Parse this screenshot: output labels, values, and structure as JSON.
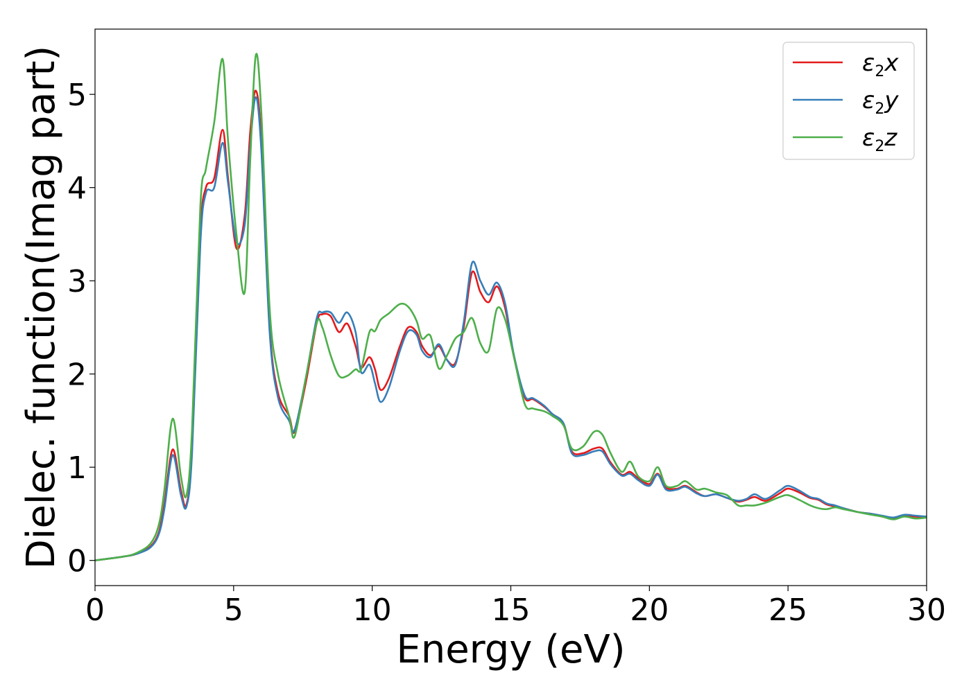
{
  "chart_data": {
    "type": "line",
    "title": "",
    "xlabel": "Energy (eV)",
    "ylabel": "Dielec. function(Imag part)",
    "xlim": [
      0,
      30
    ],
    "ylim": [
      -0.27,
      5.7
    ],
    "xticks": [
      "0",
      "5",
      "10",
      "15",
      "20",
      "25",
      "30"
    ],
    "yticks": [
      "0",
      "1",
      "2",
      "3",
      "4",
      "5"
    ],
    "grid": false,
    "legend_position": "top-right",
    "series": [
      {
        "name": "ε₂x",
        "label_base": "ε",
        "label_sub": "2",
        "label_var": "x",
        "color": "#e41a1c",
        "x": [
          0,
          1,
          1.5,
          2,
          2.3,
          2.5,
          2.8,
          3.1,
          3.3,
          3.5,
          3.8,
          4,
          4.3,
          4.6,
          4.8,
          5.1,
          5.4,
          5.6,
          5.8,
          6,
          6.3,
          6.6,
          7,
          7.2,
          7.6,
          8,
          8.2,
          8.5,
          8.8,
          9.1,
          9.4,
          9.6,
          9.9,
          10.1,
          10.3,
          10.6,
          11,
          11.3,
          11.6,
          11.8,
          12.1,
          12.4,
          12.7,
          13,
          13.3,
          13.6,
          13.9,
          14.2,
          14.5,
          14.8,
          15.1,
          15.5,
          15.8,
          16.2,
          16.5,
          16.9,
          17.2,
          17.6,
          18,
          18.3,
          18.6,
          19,
          19.3,
          19.6,
          20,
          20.3,
          20.6,
          21,
          21.3,
          21.7,
          22,
          22.4,
          22.8,
          23.2,
          23.5,
          23.8,
          24.2,
          24.7,
          25,
          25.4,
          25.8,
          26.1,
          26.4,
          26.7,
          27,
          27.5,
          28,
          28.4,
          28.8,
          29.2,
          29.6,
          30
        ],
        "y": [
          0,
          0.04,
          0.07,
          0.15,
          0.3,
          0.6,
          1.19,
          0.75,
          0.6,
          1.2,
          3.5,
          4.0,
          4.1,
          4.62,
          4.1,
          3.35,
          3.7,
          4.6,
          5.04,
          4.5,
          2.5,
          1.8,
          1.55,
          1.38,
          1.9,
          2.55,
          2.64,
          2.62,
          2.45,
          2.54,
          2.3,
          2.07,
          2.18,
          2.05,
          1.83,
          1.95,
          2.3,
          2.5,
          2.45,
          2.3,
          2.2,
          2.3,
          2.15,
          2.12,
          2.5,
          3.09,
          2.88,
          2.77,
          2.94,
          2.7,
          2.2,
          1.75,
          1.73,
          1.65,
          1.57,
          1.47,
          1.17,
          1.15,
          1.2,
          1.2,
          1.05,
          0.92,
          0.95,
          0.88,
          0.82,
          0.93,
          0.78,
          0.77,
          0.8,
          0.73,
          0.69,
          0.71,
          0.67,
          0.63,
          0.65,
          0.68,
          0.64,
          0.72,
          0.77,
          0.73,
          0.67,
          0.65,
          0.6,
          0.58,
          0.56,
          0.52,
          0.5,
          0.47,
          0.45,
          0.48,
          0.47,
          0.46
        ]
      },
      {
        "name": "ε₂y",
        "label_base": "ε",
        "label_sub": "2",
        "label_var": "y",
        "color": "#377eb8",
        "x": [
          0,
          1,
          1.5,
          2,
          2.3,
          2.5,
          2.8,
          3.1,
          3.3,
          3.5,
          3.8,
          4,
          4.3,
          4.6,
          4.8,
          5.1,
          5.4,
          5.6,
          5.8,
          6,
          6.3,
          6.6,
          7,
          7.2,
          7.6,
          8,
          8.2,
          8.5,
          8.8,
          9.1,
          9.4,
          9.6,
          9.9,
          10.1,
          10.3,
          10.6,
          11,
          11.3,
          11.6,
          11.8,
          12.1,
          12.4,
          12.7,
          13,
          13.3,
          13.6,
          13.9,
          14.2,
          14.5,
          14.8,
          15.1,
          15.5,
          15.8,
          16.2,
          16.5,
          16.9,
          17.2,
          17.6,
          18,
          18.3,
          18.6,
          19,
          19.3,
          19.6,
          20,
          20.3,
          20.6,
          21,
          21.3,
          21.7,
          22,
          22.4,
          22.8,
          23.2,
          23.5,
          23.8,
          24.2,
          24.7,
          25,
          25.4,
          25.8,
          26.1,
          26.4,
          26.7,
          27,
          27.5,
          28,
          28.4,
          28.8,
          29.2,
          29.6,
          30
        ],
        "y": [
          0,
          0.04,
          0.07,
          0.14,
          0.28,
          0.55,
          1.13,
          0.7,
          0.58,
          1.15,
          3.4,
          3.94,
          4.0,
          4.48,
          4.05,
          3.42,
          3.6,
          4.45,
          4.97,
          4.4,
          2.45,
          1.75,
          1.5,
          1.4,
          1.95,
          2.6,
          2.66,
          2.66,
          2.55,
          2.66,
          2.45,
          2.02,
          2.1,
          1.9,
          1.7,
          1.85,
          2.25,
          2.46,
          2.42,
          2.25,
          2.18,
          2.32,
          2.15,
          2.1,
          2.55,
          3.19,
          3.0,
          2.85,
          2.98,
          2.75,
          2.22,
          1.77,
          1.74,
          1.66,
          1.57,
          1.47,
          1.15,
          1.13,
          1.17,
          1.17,
          1.03,
          0.91,
          0.93,
          0.86,
          0.8,
          0.92,
          0.76,
          0.76,
          0.79,
          0.72,
          0.69,
          0.71,
          0.67,
          0.64,
          0.66,
          0.71,
          0.66,
          0.75,
          0.8,
          0.75,
          0.68,
          0.66,
          0.61,
          0.59,
          0.56,
          0.52,
          0.5,
          0.48,
          0.46,
          0.49,
          0.48,
          0.47
        ]
      },
      {
        "name": "ε₂z",
        "label_base": "ε",
        "label_sub": "2",
        "label_var": "z",
        "color": "#4daf4a",
        "x": [
          0,
          1,
          1.5,
          2,
          2.3,
          2.5,
          2.8,
          3.1,
          3.3,
          3.5,
          3.8,
          4,
          4.3,
          4.6,
          4.8,
          5.1,
          5.4,
          5.6,
          5.8,
          6,
          6.3,
          6.6,
          7,
          7.2,
          7.6,
          8,
          8.2,
          8.5,
          8.8,
          9.1,
          9.4,
          9.6,
          9.9,
          10.1,
          10.3,
          10.6,
          11,
          11.3,
          11.6,
          11.8,
          12.1,
          12.4,
          12.7,
          13,
          13.3,
          13.6,
          13.9,
          14.2,
          14.5,
          14.8,
          15.1,
          15.5,
          15.8,
          16.2,
          16.5,
          16.9,
          17.2,
          17.6,
          18,
          18.3,
          18.6,
          19,
          19.3,
          19.6,
          20,
          20.3,
          20.6,
          21,
          21.3,
          21.7,
          22,
          22.4,
          22.8,
          23.2,
          23.5,
          23.8,
          24.2,
          24.7,
          25,
          25.4,
          25.8,
          26.1,
          26.4,
          26.7,
          27,
          27.5,
          28,
          28.4,
          28.8,
          29.2,
          29.6,
          30
        ],
        "y": [
          0,
          0.04,
          0.08,
          0.18,
          0.38,
          0.75,
          1.52,
          0.9,
          0.7,
          1.4,
          3.8,
          4.2,
          4.7,
          5.38,
          4.5,
          3.5,
          2.88,
          4.3,
          5.42,
          4.8,
          2.7,
          2.0,
          1.55,
          1.33,
          1.95,
          2.55,
          2.5,
          2.2,
          1.98,
          1.98,
          2.05,
          2.05,
          2.45,
          2.46,
          2.58,
          2.65,
          2.75,
          2.72,
          2.57,
          2.38,
          2.41,
          2.06,
          2.2,
          2.38,
          2.45,
          2.6,
          2.33,
          2.25,
          2.7,
          2.58,
          2.2,
          1.68,
          1.63,
          1.6,
          1.55,
          1.45,
          1.2,
          1.22,
          1.38,
          1.35,
          1.15,
          0.95,
          1.06,
          0.9,
          0.85,
          1.0,
          0.8,
          0.8,
          0.85,
          0.76,
          0.77,
          0.73,
          0.7,
          0.59,
          0.59,
          0.59,
          0.62,
          0.68,
          0.7,
          0.65,
          0.59,
          0.56,
          0.55,
          0.57,
          0.55,
          0.52,
          0.49,
          0.47,
          0.44,
          0.47,
          0.45,
          0.46
        ]
      }
    ]
  }
}
